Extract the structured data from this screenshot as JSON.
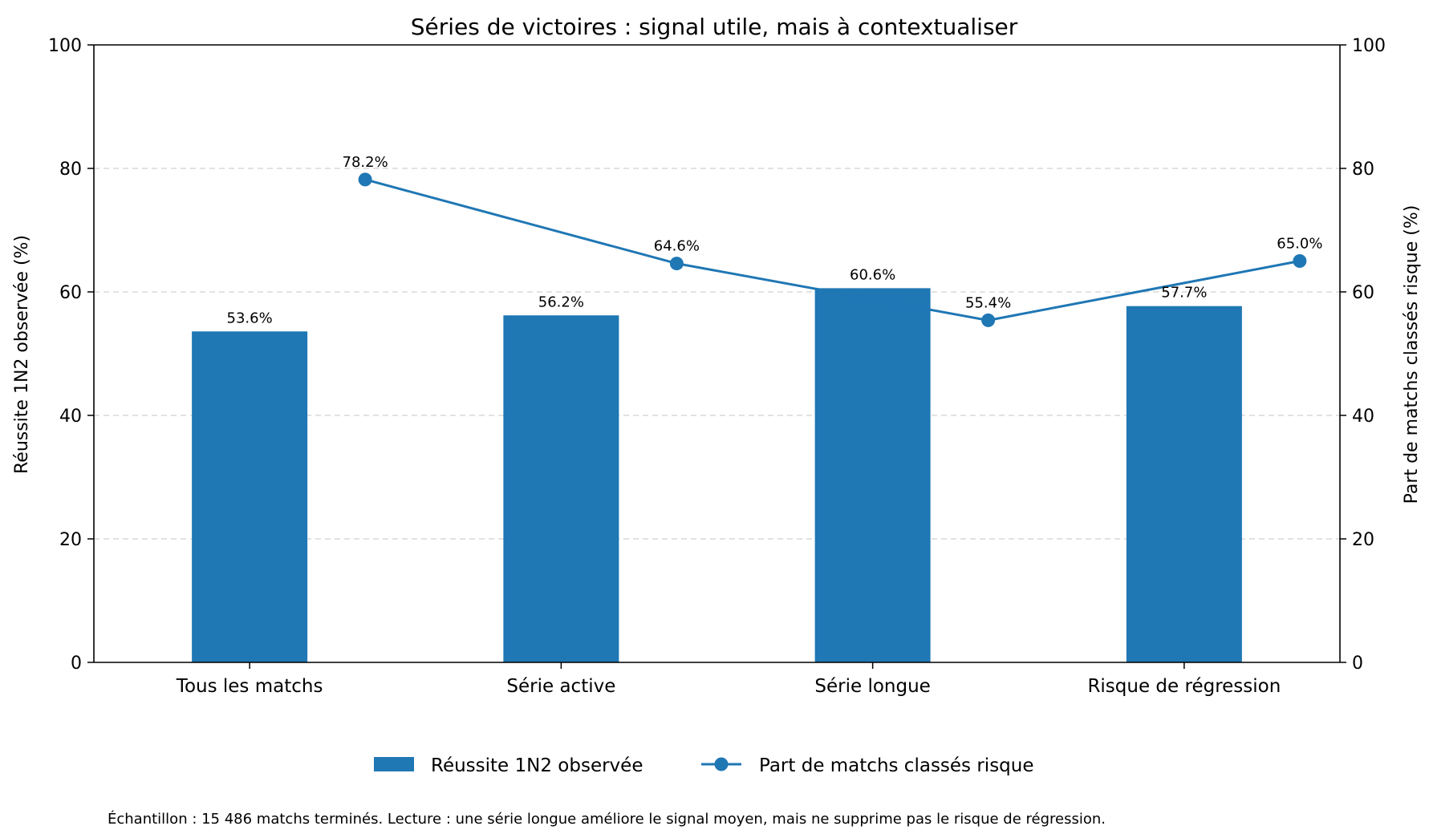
{
  "chart_data": {
    "type": "bar",
    "title": "Séries de victoires : signal utile, mais à contextualiser",
    "categories": [
      "Tous les matchs",
      "Série active",
      "Série longue",
      "Risque de régression"
    ],
    "series": [
      {
        "name": "Réussite 1N2 observée",
        "type": "bar",
        "axis": "left",
        "values": [
          53.6,
          56.2,
          60.6,
          57.7
        ],
        "labels": [
          "53.6%",
          "56.2%",
          "60.6%",
          "57.7%"
        ],
        "color": "#1f77b4"
      },
      {
        "name": "Part de matchs classés risque",
        "type": "line",
        "axis": "right",
        "values": [
          78.2,
          64.6,
          55.4,
          65.0
        ],
        "labels": [
          "78.2%",
          "64.6%",
          "55.4%",
          "65.0%"
        ],
        "color": "#1f77b4"
      }
    ],
    "ylabel": "Réussite 1N2 observée (%)",
    "ylabel_right": "Part de matchs classés risque (%)",
    "ylim": [
      0,
      100
    ],
    "ylim_right": [
      0,
      100
    ],
    "yticks": [
      "0",
      "20",
      "40",
      "60",
      "80",
      "100"
    ],
    "yticks_right": [
      "0",
      "20",
      "40",
      "60",
      "80",
      "100"
    ],
    "grid": "horizontal-dashed",
    "legend": "bottom-center",
    "footnote": "Échantillon : 15 486 matchs terminés. Lecture : une série longue améliore le signal moyen, mais ne supprime pas le risque de régression."
  }
}
